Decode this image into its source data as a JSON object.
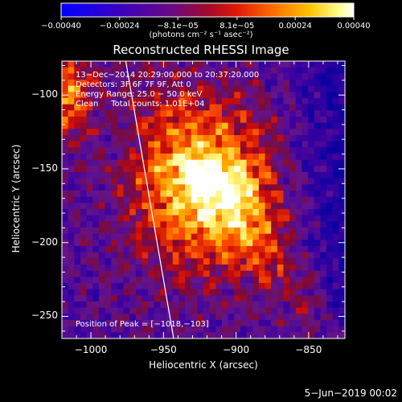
{
  "chart_data": {
    "type": "heatmap",
    "title": "Reconstructed RHESSI Image",
    "xlabel": "Heliocentric X (arcsec)",
    "ylabel": "Heliocentric Y (arcsec)",
    "xlim": [
      -1020,
      -825
    ],
    "ylim": [
      -265,
      -77
    ],
    "x_ticks": [
      -1000,
      -950,
      -900,
      -850
    ],
    "x_tick_labels": [
      "−1000",
      "−950",
      "−900",
      "−850"
    ],
    "y_ticks": [
      -100,
      -150,
      -200,
      -250
    ],
    "y_tick_labels": [
      "−100",
      "−150",
      "−200",
      "−250"
    ],
    "colorbar": {
      "range": [
        -0.0004,
        0.0004
      ],
      "ticks": [
        -0.0004,
        -0.00024,
        -8.1e-05,
        8.1e-05,
        0.00024,
        0.0004
      ],
      "tick_labels": [
        "−0.00040",
        "−0.00024",
        "−8.1e−05",
        "8.1e−05",
        "0.00024",
        "0.00040"
      ],
      "units": "(photons cm⁻² s⁻¹ asec⁻²)",
      "colors": [
        "#0000ff",
        "#4b00a6",
        "#7a0b6a",
        "#c01010",
        "#ff5200",
        "#ffb000",
        "#ffff90",
        "#ffffff"
      ]
    },
    "annotations": [
      "13−Dec−2014 20:29:00.000 to 20:37:20.000",
      "Detectors: 3F 6F 7F 9F, Att 0",
      "Energy Range: 25.0 − 50.0 keV",
      "Clean     Total counts: 1.01E+04"
    ],
    "peak_label": "Position of Peak = [−1018,−103]",
    "peak": [
      -1018,
      -103
    ],
    "limb_line": [
      [
        -976,
        -77
      ],
      [
        -943,
        -265
      ]
    ],
    "grid": false
  },
  "footer": {
    "date": "5−Jun−2019 00:02"
  }
}
